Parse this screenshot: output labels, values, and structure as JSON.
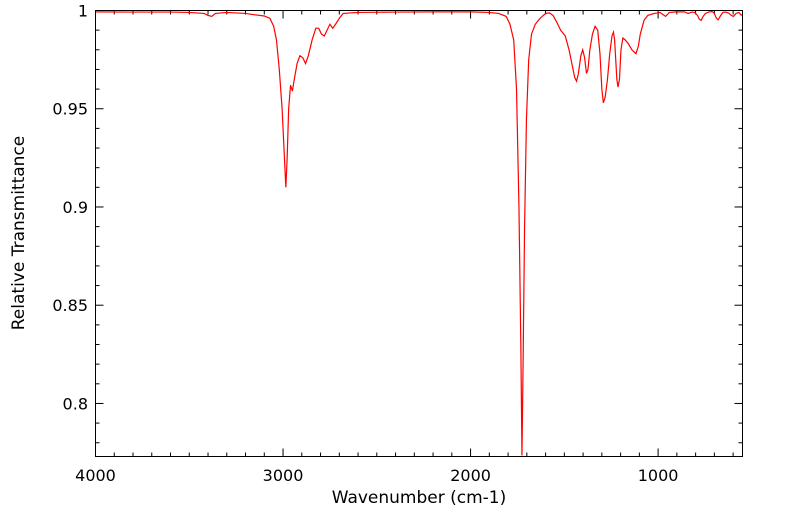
{
  "chart_data": {
    "type": "line",
    "title": "",
    "xlabel": "Wavenumber (cm-1)",
    "ylabel": "Relative Transmittance",
    "xlim": [
      4000,
      550
    ],
    "ylim": [
      0.773,
      1.0
    ],
    "x_reversed": true,
    "grid": false,
    "legend": "none",
    "line_color": "#ff0000",
    "x_ticks": [
      {
        "value": 4000,
        "label": "4000"
      },
      {
        "value": 3000,
        "label": "3000"
      },
      {
        "value": 2000,
        "label": "2000"
      },
      {
        "value": 1000,
        "label": "1000"
      }
    ],
    "y_ticks": [
      {
        "value": 1.0,
        "label": "1"
      },
      {
        "value": 0.95,
        "label": "0.95"
      },
      {
        "value": 0.9,
        "label": "0.9"
      },
      {
        "value": 0.85,
        "label": "0.85"
      },
      {
        "value": 0.8,
        "label": "0.8"
      }
    ],
    "series": [
      {
        "points": [
          [
            4000,
            0.9993
          ],
          [
            3800,
            0.9992
          ],
          [
            3600,
            0.9992
          ],
          [
            3500,
            0.999
          ],
          [
            3420,
            0.9985
          ],
          [
            3400,
            0.9975
          ],
          [
            3380,
            0.997
          ],
          [
            3360,
            0.9985
          ],
          [
            3300,
            0.999
          ],
          [
            3200,
            0.9985
          ],
          [
            3150,
            0.9978
          ],
          [
            3100,
            0.9972
          ],
          [
            3070,
            0.996
          ],
          [
            3050,
            0.992
          ],
          [
            3035,
            0.985
          ],
          [
            3020,
            0.97
          ],
          [
            3005,
            0.95
          ],
          [
            2995,
            0.93
          ],
          [
            2985,
            0.91
          ],
          [
            2978,
            0.925
          ],
          [
            2970,
            0.95
          ],
          [
            2960,
            0.962
          ],
          [
            2950,
            0.959
          ],
          [
            2940,
            0.965
          ],
          [
            2925,
            0.973
          ],
          [
            2910,
            0.977
          ],
          [
            2895,
            0.976
          ],
          [
            2880,
            0.973
          ],
          [
            2865,
            0.977
          ],
          [
            2845,
            0.985
          ],
          [
            2825,
            0.991
          ],
          [
            2810,
            0.991
          ],
          [
            2795,
            0.988
          ],
          [
            2780,
            0.987
          ],
          [
            2765,
            0.99
          ],
          [
            2750,
            0.993
          ],
          [
            2735,
            0.991
          ],
          [
            2720,
            0.993
          ],
          [
            2700,
            0.996
          ],
          [
            2680,
            0.9985
          ],
          [
            2600,
            0.999
          ],
          [
            2400,
            0.9992
          ],
          [
            2200,
            0.9993
          ],
          [
            2000,
            0.9993
          ],
          [
            1900,
            0.999
          ],
          [
            1850,
            0.9985
          ],
          [
            1810,
            0.997
          ],
          [
            1790,
            0.993
          ],
          [
            1770,
            0.985
          ],
          [
            1755,
            0.96
          ],
          [
            1742,
            0.9
          ],
          [
            1732,
            0.83
          ],
          [
            1726,
            0.7735
          ],
          [
            1720,
            0.82
          ],
          [
            1712,
            0.89
          ],
          [
            1702,
            0.945
          ],
          [
            1690,
            0.975
          ],
          [
            1675,
            0.988
          ],
          [
            1655,
            0.993
          ],
          [
            1630,
            0.996
          ],
          [
            1600,
            0.9985
          ],
          [
            1580,
            0.9988
          ],
          [
            1560,
            0.9975
          ],
          [
            1540,
            0.994
          ],
          [
            1520,
            0.99
          ],
          [
            1495,
            0.987
          ],
          [
            1475,
            0.98
          ],
          [
            1460,
            0.973
          ],
          [
            1445,
            0.966
          ],
          [
            1435,
            0.964
          ],
          [
            1425,
            0.968
          ],
          [
            1412,
            0.977
          ],
          [
            1402,
            0.98
          ],
          [
            1392,
            0.976
          ],
          [
            1382,
            0.968
          ],
          [
            1374,
            0.97
          ],
          [
            1364,
            0.98
          ],
          [
            1350,
            0.988
          ],
          [
            1336,
            0.992
          ],
          [
            1322,
            0.99
          ],
          [
            1310,
            0.978
          ],
          [
            1300,
            0.96
          ],
          [
            1292,
            0.953
          ],
          [
            1282,
            0.956
          ],
          [
            1270,
            0.965
          ],
          [
            1258,
            0.978
          ],
          [
            1246,
            0.987
          ],
          [
            1238,
            0.989
          ],
          [
            1232,
            0.985
          ],
          [
            1226,
            0.975
          ],
          [
            1220,
            0.965
          ],
          [
            1214,
            0.961
          ],
          [
            1206,
            0.965
          ],
          [
            1198,
            0.98
          ],
          [
            1188,
            0.986
          ],
          [
            1175,
            0.985
          ],
          [
            1158,
            0.983
          ],
          [
            1140,
            0.98
          ],
          [
            1118,
            0.978
          ],
          [
            1105,
            0.982
          ],
          [
            1095,
            0.988
          ],
          [
            1075,
            0.995
          ],
          [
            1055,
            0.9975
          ],
          [
            1020,
            0.9985
          ],
          [
            990,
            0.999
          ],
          [
            960,
            0.997
          ],
          [
            940,
            0.999
          ],
          [
            900,
            0.9993
          ],
          [
            860,
            0.9993
          ],
          [
            840,
            0.9985
          ],
          [
            820,
            0.9992
          ],
          [
            805,
            0.999
          ],
          [
            790,
            0.9975
          ],
          [
            780,
            0.9955
          ],
          [
            770,
            0.995
          ],
          [
            760,
            0.997
          ],
          [
            748,
            0.9985
          ],
          [
            730,
            0.9992
          ],
          [
            712,
            0.9995
          ],
          [
            700,
            0.9985
          ],
          [
            690,
            0.9962
          ],
          [
            680,
            0.9952
          ],
          [
            668,
            0.9972
          ],
          [
            655,
            0.999
          ],
          [
            640,
            0.9992
          ],
          [
            625,
            0.9988
          ],
          [
            610,
            0.9975
          ],
          [
            598,
            0.997
          ],
          [
            585,
            0.9985
          ],
          [
            570,
            0.999
          ],
          [
            558,
            0.9978
          ],
          [
            550,
            0.9975
          ]
        ]
      }
    ]
  }
}
